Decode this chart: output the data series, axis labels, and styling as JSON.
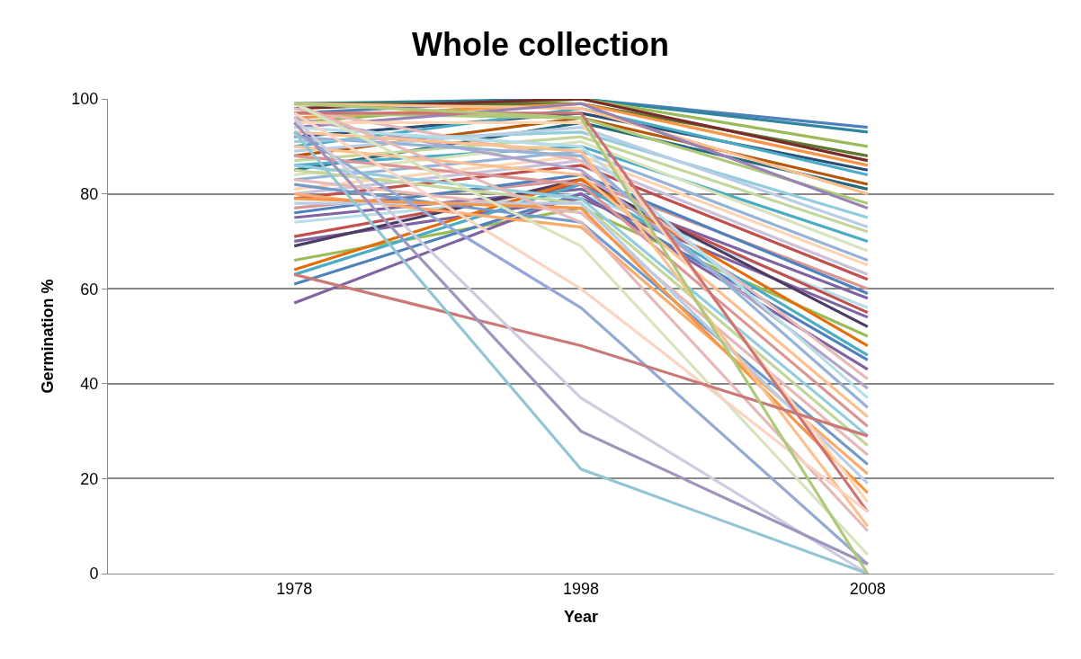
{
  "chart_data": {
    "type": "line",
    "title": "Whole collection",
    "xlabel": "Year",
    "ylabel": "Germination %",
    "categories": [
      "1978",
      "1998",
      "2008"
    ],
    "ylim": [
      0,
      100
    ],
    "yticks": [
      0,
      20,
      40,
      60,
      80,
      100
    ],
    "grid": "y",
    "marker": "none",
    "line_style": "solid",
    "series": [
      {
        "color": "#4f81bd",
        "values": [
          97,
          100,
          94
        ]
      },
      {
        "color": "#31859c",
        "values": [
          99,
          100,
          93
        ]
      },
      {
        "color": "#9bbb59",
        "values": [
          95,
          100,
          90
        ]
      },
      {
        "color": "#5f7530",
        "values": [
          99,
          99,
          88
        ]
      },
      {
        "color": "#772c2a",
        "values": [
          98,
          100,
          87
        ]
      },
      {
        "color": "#f79646",
        "values": [
          96,
          99,
          86
        ]
      },
      {
        "color": "#2c4d75",
        "values": [
          92,
          97,
          85
        ]
      },
      {
        "color": "#4bacc6",
        "values": [
          90,
          98,
          84
        ]
      },
      {
        "color": "#b65708",
        "values": [
          88,
          96,
          82
        ]
      },
      {
        "color": "#276a7c",
        "values": [
          85,
          95,
          81
        ]
      },
      {
        "color": "#fac090",
        "values": [
          99,
          98,
          80
        ]
      },
      {
        "color": "#afc97a",
        "values": [
          97,
          96,
          78
        ]
      },
      {
        "color": "#9983b5",
        "values": [
          94,
          99,
          77
        ]
      },
      {
        "color": "#93cddd",
        "values": [
          91,
          93,
          75
        ]
      },
      {
        "color": "#b9cde5",
        "values": [
          89,
          94,
          73
        ]
      },
      {
        "color": "#c3d69b",
        "values": [
          87,
          92,
          72
        ]
      },
      {
        "color": "#4bacc6",
        "values": [
          86,
          90,
          70
        ]
      },
      {
        "color": "#d7e4bd",
        "values": [
          84,
          91,
          68
        ]
      },
      {
        "color": "#95b3d7",
        "values": [
          83,
          89,
          66
        ]
      },
      {
        "color": "#fcd5b5",
        "values": [
          81,
          88,
          65
        ]
      },
      {
        "color": "#ccc1da",
        "values": [
          80,
          87,
          63
        ]
      },
      {
        "color": "#c0504d",
        "values": [
          79,
          86,
          62
        ]
      },
      {
        "color": "#d99694",
        "values": [
          77,
          83,
          60
        ]
      },
      {
        "color": "#4f81bd",
        "values": [
          76,
          84,
          59
        ]
      },
      {
        "color": "#8064a2",
        "values": [
          75,
          81,
          58
        ]
      },
      {
        "color": "#b7dee8",
        "values": [
          74,
          80,
          56
        ]
      },
      {
        "color": "#c0504d",
        "values": [
          71,
          82,
          55
        ]
      },
      {
        "color": "#8064a2",
        "values": [
          70,
          79,
          54
        ]
      },
      {
        "color": "#4d3b62",
        "values": [
          69,
          83,
          52
        ]
      },
      {
        "color": "#9bbb59",
        "values": [
          66,
          77,
          50
        ]
      },
      {
        "color": "#e46c0a",
        "values": [
          64,
          83,
          48
        ]
      },
      {
        "color": "#4bacc6",
        "values": [
          63,
          82,
          46
        ]
      },
      {
        "color": "#4f81bd",
        "values": [
          61,
          80,
          45
        ]
      },
      {
        "color": "#8064a2",
        "values": [
          57,
          80,
          43
        ]
      },
      {
        "color": "#e6b9b8",
        "values": [
          98,
          87,
          41
        ]
      },
      {
        "color": "#b3a2c7",
        "values": [
          96,
          85,
          39
        ]
      },
      {
        "color": "#b7dee8",
        "values": [
          94,
          90,
          37
        ]
      },
      {
        "color": "#95b3d7",
        "values": [
          92,
          88,
          35
        ]
      },
      {
        "color": "#fac090",
        "values": [
          90,
          84,
          33
        ]
      },
      {
        "color": "#d99694",
        "values": [
          88,
          82,
          31
        ]
      },
      {
        "color": "#93cddd",
        "values": [
          86,
          79,
          29
        ]
      },
      {
        "color": "#c3d69b",
        "values": [
          85,
          78,
          27
        ]
      },
      {
        "color": "#e6b9b8",
        "values": [
          83,
          76,
          25
        ]
      },
      {
        "color": "#729aca",
        "values": [
          82,
          74,
          23
        ]
      },
      {
        "color": "#f9ab6b",
        "values": [
          80,
          73,
          21
        ]
      },
      {
        "color": "#b9cde5",
        "values": [
          78,
          78,
          19
        ]
      },
      {
        "color": "#f79646",
        "values": [
          79,
          77,
          17
        ]
      },
      {
        "color": "#fcd5b5",
        "values": [
          95,
          95,
          15
        ]
      },
      {
        "color": "#cd7371",
        "values": [
          97,
          97,
          13
        ]
      },
      {
        "color": "#fac090",
        "values": [
          93,
          89,
          10
        ]
      },
      {
        "color": "#e6b9b8",
        "values": [
          99,
          74,
          9
        ]
      },
      {
        "color": "#d7e4bd",
        "values": [
          99,
          69,
          4
        ]
      },
      {
        "color": "#fad4c0",
        "values": [
          97,
          60,
          13
        ]
      },
      {
        "color": "#95a9d4",
        "values": [
          93,
          56,
          2
        ]
      },
      {
        "color": "#c77a78",
        "values": [
          63,
          48,
          29
        ]
      },
      {
        "color": "#d0cce0",
        "values": [
          96,
          37,
          0
        ]
      },
      {
        "color": "#a093bd",
        "values": [
          95,
          30,
          2
        ]
      },
      {
        "color": "#93c5d4",
        "values": [
          93,
          22,
          0
        ]
      },
      {
        "color": "#afc97a",
        "values": [
          99,
          96,
          0
        ]
      }
    ]
  }
}
